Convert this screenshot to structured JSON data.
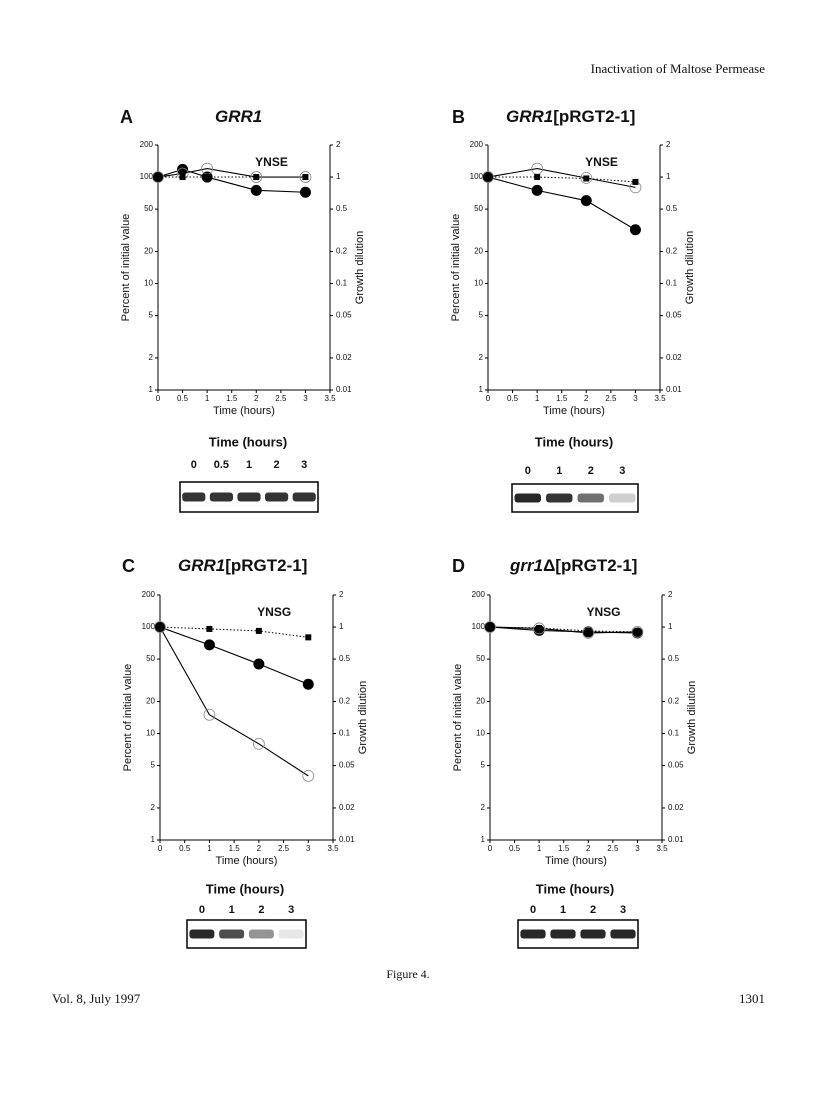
{
  "header": "Inactivation of Maltose Permease",
  "caption": "Figure 4.",
  "footer": {
    "left": "Vol. 8, July 1997",
    "right": "1301"
  },
  "chart_data": [
    {
      "type": "line",
      "panel": "A",
      "title_parts": [
        "GRR1",
        ""
      ],
      "annotation": "YNSE",
      "x_label": "Time (hours)",
      "y_label": "Percent of initial value",
      "y2_label": "Growth dilution",
      "log_scale": true,
      "x": [
        0,
        0.5,
        1,
        2,
        3
      ],
      "series": [
        {
          "color": "#000000",
          "marker": "filled-circle",
          "line": "solid",
          "values": [
            100,
            118,
            100,
            75,
            72
          ]
        },
        {
          "color": "#000000",
          "marker": "open-circle",
          "line": "solid",
          "values": [
            100,
            108,
            120,
            100,
            100
          ]
        },
        {
          "color": "#000000",
          "marker": "square",
          "line": "dotted",
          "axis": "y2",
          "values": [
            1,
            1,
            1,
            1,
            1
          ]
        }
      ],
      "xlim": [
        0,
        3.5
      ],
      "xticks": [
        0,
        0.5,
        1,
        1.5,
        2,
        2.5,
        3,
        3.5
      ],
      "ylim": [
        1,
        200
      ],
      "yticks": [
        1,
        2,
        5,
        10,
        20,
        50,
        100,
        200
      ],
      "y2lim": [
        0.01,
        2
      ],
      "y2ticks": [
        0.01,
        0.02,
        0.05,
        0.1,
        0.2,
        0.5,
        1,
        2
      ],
      "blot": {
        "label": "Time (hours)",
        "lanes": [
          "0",
          "0.5",
          "1",
          "2",
          "3"
        ]
      }
    },
    {
      "type": "line",
      "panel": "B",
      "title_parts": [
        "GRR1",
        "[pRGT2-1]"
      ],
      "annotation": "YNSE",
      "x_label": "Time (hours)",
      "y_label": "Percent of initial value",
      "y2_label": "Growth dilution",
      "log_scale": true,
      "x": [
        0,
        1,
        2,
        3
      ],
      "series": [
        {
          "color": "#000000",
          "marker": "filled-circle",
          "line": "solid",
          "values": [
            100,
            75,
            60,
            32
          ]
        },
        {
          "color": "#000000",
          "marker": "open-circle",
          "line": "solid",
          "values": [
            100,
            120,
            98,
            80
          ]
        },
        {
          "color": "#000000",
          "marker": "square",
          "line": "dotted",
          "axis": "y2",
          "values": [
            1,
            1,
            0.97,
            0.9
          ]
        }
      ],
      "xlim": [
        0,
        3.5
      ],
      "xticks": [
        0,
        0.5,
        1,
        1.5,
        2,
        2.5,
        3,
        3.5
      ],
      "ylim": [
        1,
        200
      ],
      "yticks": [
        1,
        2,
        5,
        10,
        20,
        50,
        100,
        200
      ],
      "y2lim": [
        0.01,
        2
      ],
      "y2ticks": [
        0.01,
        0.02,
        0.05,
        0.1,
        0.2,
        0.5,
        1,
        2
      ],
      "blot": {
        "label": "Time (hours)",
        "lanes": [
          "0",
          "1",
          "2",
          "3"
        ]
      }
    },
    {
      "type": "line",
      "panel": "C",
      "title_parts": [
        "GRR1",
        "[pRGT2-1]"
      ],
      "annotation": "YNSG",
      "x_label": "Time (hours)",
      "y_label": "Percent of initial value",
      "y2_label": "Growth dilution",
      "log_scale": true,
      "x": [
        0,
        1,
        2,
        3
      ],
      "series": [
        {
          "color": "#000000",
          "marker": "filled-circle",
          "line": "solid",
          "values": [
            100,
            68,
            45,
            29
          ]
        },
        {
          "color": "#000000",
          "marker": "open-circle",
          "line": "solid",
          "values": [
            100,
            15,
            8,
            4
          ]
        },
        {
          "color": "#000000",
          "marker": "square",
          "line": "dotted",
          "axis": "y2",
          "values": [
            1,
            0.96,
            0.92,
            0.8
          ]
        }
      ],
      "xlim": [
        0,
        3.5
      ],
      "xticks": [
        0,
        0.5,
        1,
        1.5,
        2,
        2.5,
        3,
        3.5
      ],
      "ylim": [
        1,
        200
      ],
      "yticks": [
        1,
        2,
        5,
        10,
        20,
        50,
        100,
        200
      ],
      "y2lim": [
        0.01,
        2
      ],
      "y2ticks": [
        0.01,
        0.02,
        0.05,
        0.1,
        0.2,
        0.5,
        1,
        2
      ],
      "blot": {
        "label": "Time (hours)",
        "lanes": [
          "0",
          "1",
          "2",
          "3"
        ]
      }
    },
    {
      "type": "line",
      "panel": "D",
      "title_parts": [
        "grr1",
        "Δ[pRGT2-1]"
      ],
      "annotation": "YNSG",
      "x_label": "Time (hours)",
      "y_label": "Percent of initial value",
      "y2_label": "Growth dilution",
      "log_scale": true,
      "x": [
        0,
        1,
        2,
        3
      ],
      "series": [
        {
          "color": "#000000",
          "marker": "filled-circle",
          "line": "solid",
          "values": [
            100,
            93,
            90,
            88
          ]
        },
        {
          "color": "#000000",
          "marker": "open-circle",
          "line": "solid",
          "values": [
            100,
            97,
            88,
            90
          ]
        },
        {
          "color": "#000000",
          "marker": "square",
          "line": "dotted",
          "axis": "y2",
          "values": [
            1,
            0.98,
            0.92,
            0.9
          ]
        }
      ],
      "xlim": [
        0,
        3.5
      ],
      "xticks": [
        0,
        0.5,
        1,
        1.5,
        2,
        2.5,
        3,
        3.5
      ],
      "ylim": [
        1,
        200
      ],
      "yticks": [
        1,
        2,
        5,
        10,
        20,
        50,
        100,
        200
      ],
      "y2lim": [
        0.01,
        2
      ],
      "y2ticks": [
        0.01,
        0.02,
        0.05,
        0.1,
        0.2,
        0.5,
        1,
        2
      ],
      "blot": {
        "label": "Time (hours)",
        "lanes": [
          "0",
          "1",
          "2",
          "3"
        ]
      }
    }
  ]
}
